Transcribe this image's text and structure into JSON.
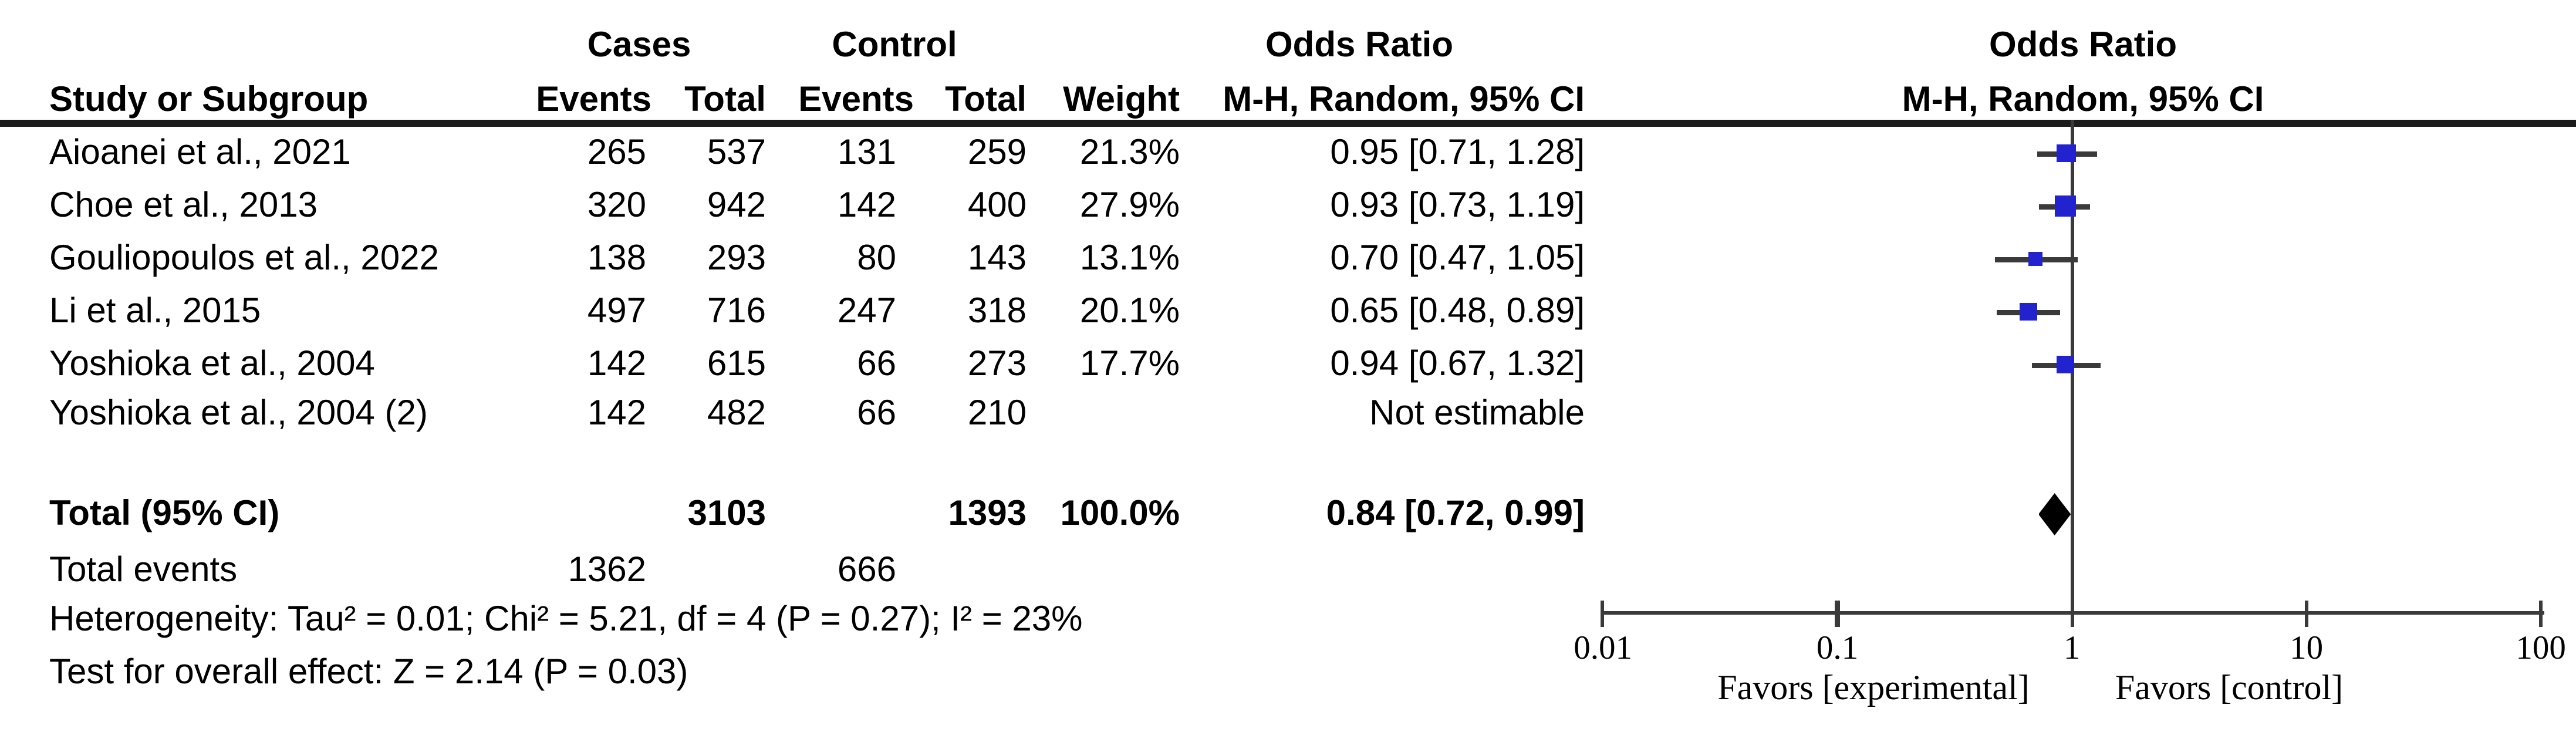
{
  "figure": {
    "type": "forest-plot",
    "square_color": "#2222cf",
    "line_color": "#3a3a3a",
    "diamond_color": "#000000"
  },
  "header": {
    "cases_group": "Cases",
    "control_group": "Control",
    "odds_ratio_left": "Odds Ratio",
    "odds_ratio_right": "Odds Ratio",
    "study": "Study or Subgroup",
    "events1": "Events",
    "total1": "Total",
    "events2": "Events",
    "total2": "Total",
    "weight": "Weight",
    "mh_left": "M-H, Random, 95% CI",
    "mh_right": "M-H, Random, 95% CI"
  },
  "rows": [
    {
      "study": "Aioanei et al., 2021",
      "cases_events": "265",
      "cases_total": "537",
      "control_events": "131",
      "control_total": "259",
      "weight": "21.3%",
      "or_ci": "0.95 [0.71, 1.28]"
    },
    {
      "study": "Choe et al., 2013",
      "cases_events": "320",
      "cases_total": "942",
      "control_events": "142",
      "control_total": "400",
      "weight": "27.9%",
      "or_ci": "0.93 [0.73, 1.19]"
    },
    {
      "study": "Gouliopoulos et al., 2022",
      "cases_events": "138",
      "cases_total": "293",
      "control_events": "80",
      "control_total": "143",
      "weight": "13.1%",
      "or_ci": "0.70 [0.47, 1.05]"
    },
    {
      "study": "Li et al., 2015",
      "cases_events": "497",
      "cases_total": "716",
      "control_events": "247",
      "control_total": "318",
      "weight": "20.1%",
      "or_ci": "0.65 [0.48, 0.89]"
    },
    {
      "study": "Yoshioka et al., 2004",
      "cases_events": "142",
      "cases_total": "615",
      "control_events": "66",
      "control_total": "273",
      "weight": "17.7%",
      "or_ci": "0.94 [0.67, 1.32]"
    },
    {
      "study": "Yoshioka et al., 2004 (2)",
      "cases_events": "142",
      "cases_total": "482",
      "control_events": "66",
      "control_total": "210",
      "weight": "",
      "or_ci": "Not estimable"
    }
  ],
  "total_row": {
    "label": "Total (95% CI)",
    "cases_total": "3103",
    "control_total": "1393",
    "weight": "100.0%",
    "or_ci": "0.84 [0.72, 0.99]"
  },
  "total_events_row": {
    "label": "Total events",
    "cases_events": "1362",
    "control_events": "666"
  },
  "footnotes": {
    "heterogeneity": "Heterogeneity: Tau² = 0.01; Chi² = 5.21, df = 4 (P = 0.27); I² = 23%",
    "overall_effect": "Test for overall effect: Z = 2.14 (P = 0.03)"
  },
  "axis": {
    "tick_labels": [
      "0.01",
      "0.1",
      "1",
      "10",
      "100"
    ],
    "favors_left": "Favors [experimental]",
    "favors_right": "Favors [control]"
  },
  "chart_data": {
    "type": "forest",
    "x_scale": "log10",
    "x_ticks": [
      0.01,
      0.1,
      1,
      10,
      100
    ],
    "xlim": [
      0.01,
      100
    ],
    "effect_measure": "Odds Ratio, M-H, Random, 95% CI",
    "studies": [
      {
        "name": "Aioanei et al., 2021",
        "or": 0.95,
        "lo": 0.71,
        "hi": 1.28,
        "weight_pct": 21.3
      },
      {
        "name": "Choe et al., 2013",
        "or": 0.93,
        "lo": 0.73,
        "hi": 1.19,
        "weight_pct": 27.9
      },
      {
        "name": "Gouliopoulos et al., 2022",
        "or": 0.7,
        "lo": 0.47,
        "hi": 1.05,
        "weight_pct": 13.1
      },
      {
        "name": "Li et al., 2015",
        "or": 0.65,
        "lo": 0.48,
        "hi": 0.89,
        "weight_pct": 20.1
      },
      {
        "name": "Yoshioka et al., 2004",
        "or": 0.94,
        "lo": 0.67,
        "hi": 1.32,
        "weight_pct": 17.7
      },
      {
        "name": "Yoshioka et al., 2004 (2)",
        "or": null,
        "lo": null,
        "hi": null,
        "weight_pct": null
      }
    ],
    "total": {
      "name": "Total (95% CI)",
      "or": 0.84,
      "lo": 0.72,
      "hi": 0.99
    },
    "heterogeneity": {
      "tau2": 0.01,
      "chi2": 5.21,
      "df": 4,
      "p": 0.27,
      "i2_pct": 23
    },
    "overall_effect": {
      "z": 2.14,
      "p": 0.03
    }
  }
}
